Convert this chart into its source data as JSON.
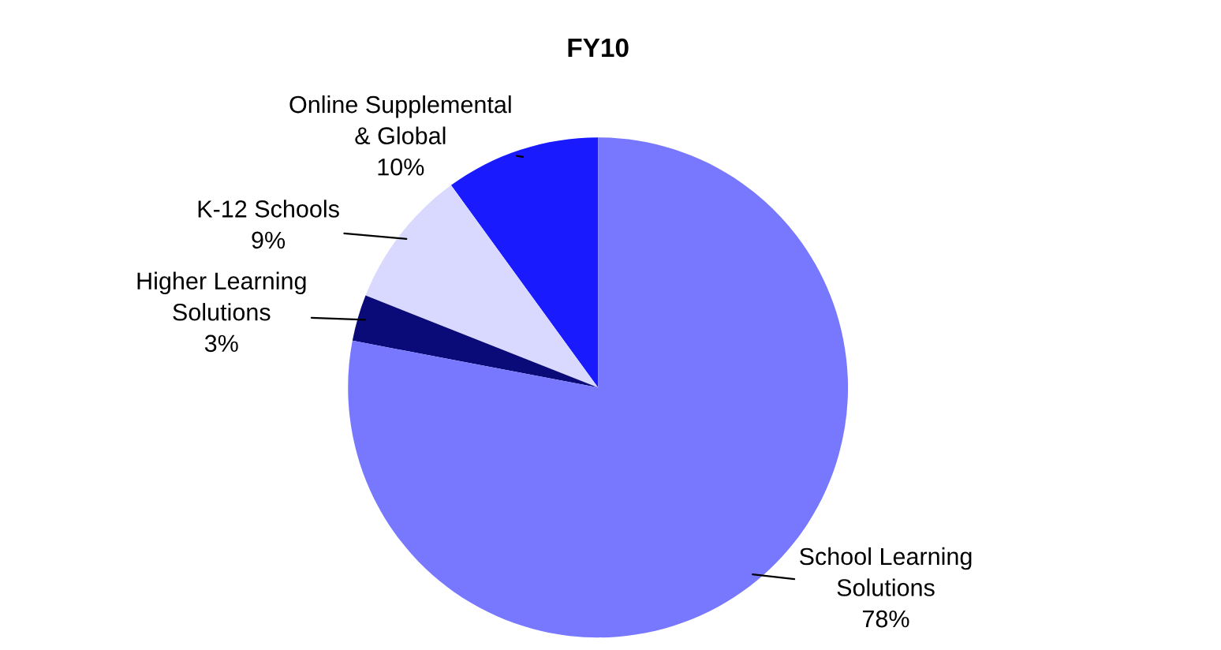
{
  "chart_data": {
    "type": "pie",
    "title": "FY10",
    "categories": [
      "Online Supplemental\n& Global",
      "K-12 Schools",
      "Higher Learning\nSolutions",
      "School Learning\nSolutions"
    ],
    "values": [
      10,
      9,
      3,
      78
    ],
    "colors": [
      "#1a1aff",
      "#d9d9ff",
      "#0a0a78",
      "#7878ff"
    ],
    "value_labels": [
      "10%",
      "9%",
      "3%",
      "78%"
    ]
  }
}
